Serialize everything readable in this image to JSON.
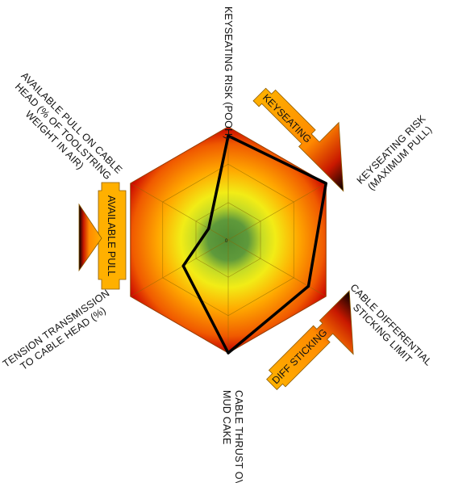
{
  "chart_data": {
    "type": "radar",
    "axes": [
      {
        "label": "KEYSEATING RISK (POOH)"
      },
      {
        "label": "KEYSEATING RISK (MAXIMUM PULL)"
      },
      {
        "label": "CABLE DIFFERENTIAL STICKING LIMIT"
      },
      {
        "label": "CABLE THRUST OVER MUD CAKE"
      },
      {
        "label": "TENSION TRANSMISSION TO CABLE HEAD (%)"
      },
      {
        "label": "AVAILABLE PULL ON CABLE HEAD (% OF TOOLSTRING WEIGHT IN AIR)"
      }
    ],
    "center_label": "0",
    "rmax": 1.0,
    "grid_rings": [
      0.33,
      0.67,
      1.0
    ],
    "series": [
      {
        "values": [
          0.92,
          1.0,
          0.82,
          1.0,
          0.46,
          0.2
        ],
        "color": "#000000"
      }
    ],
    "zones": [
      {
        "label": "KEYSEATING"
      },
      {
        "label": "DIFF STICKING"
      },
      {
        "label": "AVAILABLE PULL"
      }
    ],
    "colors": {
      "center": "#4e8a35",
      "green": "#5f9a3b",
      "yellow": "#e8e81a",
      "orange": "#ffa200",
      "red": "#e83e00",
      "edge": "#c00000",
      "flag_fill": "#ffb000",
      "flag_dark": "#000000",
      "grid_line": "#8a6a00",
      "series_line": "#000000"
    }
  }
}
